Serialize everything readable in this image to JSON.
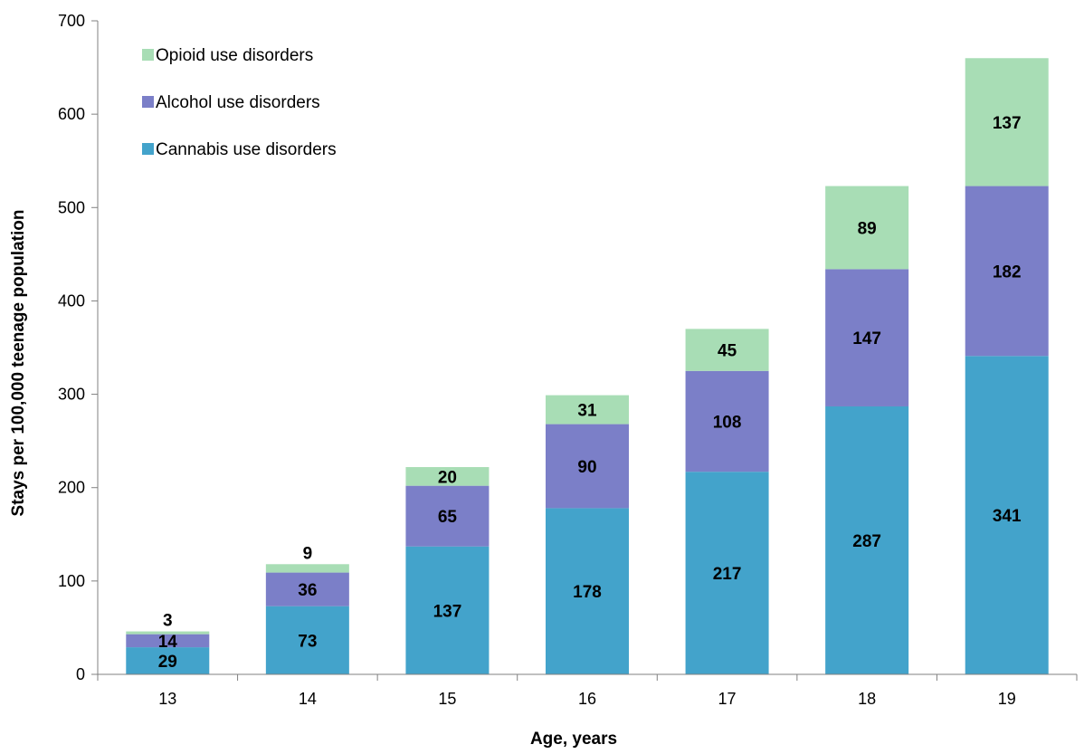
{
  "chart_data": {
    "type": "bar",
    "stacked": true,
    "title": "",
    "xlabel": "Age, years",
    "ylabel": "Stays per 100,000 teenage population",
    "categories": [
      "13",
      "14",
      "15",
      "16",
      "17",
      "18",
      "19"
    ],
    "ylim": [
      0,
      700
    ],
    "yticks": [
      0,
      100,
      200,
      300,
      400,
      500,
      600,
      700
    ],
    "grid": false,
    "legend_position": "top-left",
    "series": [
      {
        "name": "Cannabis use disorders",
        "color": "#43A3CB",
        "values": [
          29,
          73,
          137,
          178,
          217,
          287,
          341
        ]
      },
      {
        "name": "Alcohol use disorders",
        "color": "#7B7FC8",
        "values": [
          14,
          36,
          65,
          90,
          108,
          147,
          182
        ]
      },
      {
        "name": "Opioid use disorders",
        "color": "#A8DDB5",
        "values": [
          3,
          9,
          20,
          31,
          45,
          89,
          137
        ]
      }
    ],
    "legend_order": [
      2,
      1,
      0
    ]
  }
}
